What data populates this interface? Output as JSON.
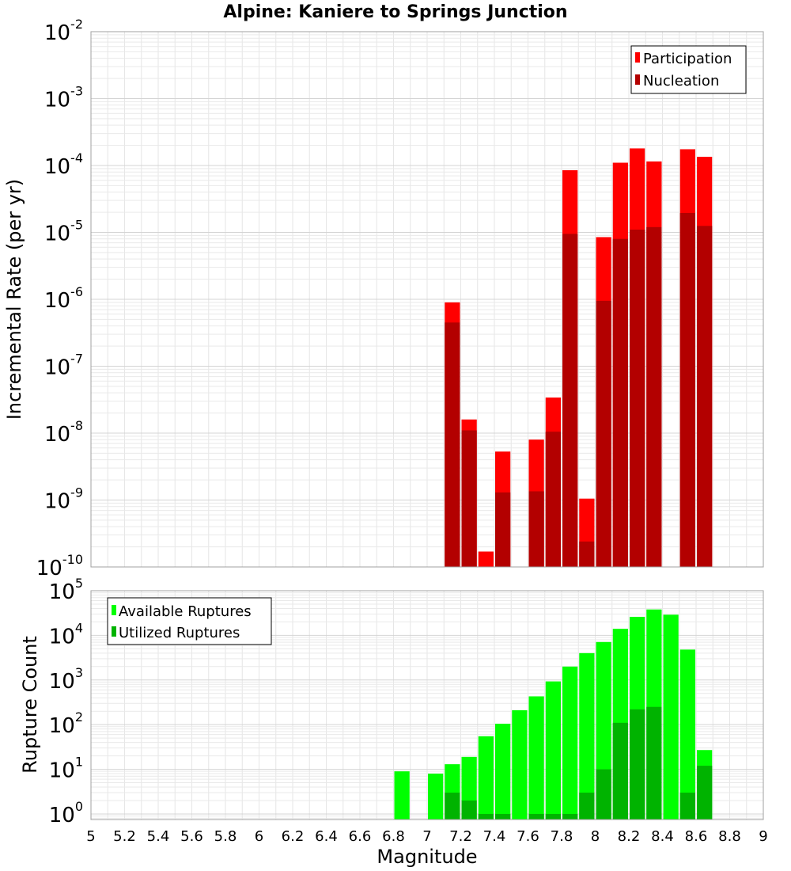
{
  "chart_data": [
    {
      "type": "bar",
      "title": "Alpine: Kaniere to Springs Junction",
      "ylabel": "Incremental Rate (per yr)",
      "xlabel": "",
      "xlim": [
        5,
        9
      ],
      "ylim": [
        1e-10,
        0.01
      ],
      "yscale": "log",
      "grid": true,
      "legend_position": "top-right",
      "bin_width": 0.1,
      "ytick_labels": [
        {
          "base": "10",
          "exp": "-10"
        },
        {
          "base": "10",
          "exp": "-9"
        },
        {
          "base": "10",
          "exp": "-8"
        },
        {
          "base": "10",
          "exp": "-7"
        },
        {
          "base": "10",
          "exp": "-6"
        },
        {
          "base": "10",
          "exp": "-5"
        },
        {
          "base": "10",
          "exp": "-4"
        },
        {
          "base": "10",
          "exp": "-3"
        },
        {
          "base": "10",
          "exp": "-2"
        }
      ],
      "series": [
        {
          "name": "Participation",
          "color": "#ff0000",
          "x": [
            7.15,
            7.25,
            7.35,
            7.45,
            7.65,
            7.75,
            7.85,
            7.95,
            8.05,
            8.15,
            8.25,
            8.35,
            8.55,
            8.65
          ],
          "values": [
            9e-07,
            1.6e-08,
            1.7e-10,
            5.3e-09,
            8e-09,
            3.4e-08,
            8.5e-05,
            1.05e-09,
            8.5e-06,
            0.00011,
            0.00018,
            0.000115,
            0.000175,
            0.000135
          ]
        },
        {
          "name": "Nucleation",
          "color": "#b30000",
          "x": [
            7.15,
            7.25,
            7.45,
            7.65,
            7.75,
            7.85,
            7.95,
            8.05,
            8.15,
            8.25,
            8.35,
            8.55,
            8.65
          ],
          "values": [
            4.5e-07,
            1.1e-08,
            1.3e-09,
            1.35e-09,
            1.05e-08,
            9.5e-06,
            2.4e-10,
            9.5e-07,
            8e-06,
            1.1e-05,
            1.2e-05,
            1.95e-05,
            1.25e-05
          ]
        }
      ]
    },
    {
      "type": "bar",
      "title": "",
      "ylabel": "Rupture Count",
      "xlabel": "Magnitude",
      "xlim": [
        5,
        9
      ],
      "ylim": [
        0.75,
        100000
      ],
      "yscale": "log",
      "grid": true,
      "legend_position": "top-left",
      "bin_width": 0.1,
      "xtick_labels": [
        "5",
        "5.2",
        "5.4",
        "5.6",
        "5.8",
        "6",
        "6.2",
        "6.4",
        "6.6",
        "6.8",
        "7",
        "7.2",
        "7.4",
        "7.6",
        "7.8",
        "8",
        "8.2",
        "8.4",
        "8.6",
        "8.8",
        "9"
      ],
      "ytick_labels": [
        {
          "base": "10",
          "exp": "0"
        },
        {
          "base": "10",
          "exp": "1"
        },
        {
          "base": "10",
          "exp": "2"
        },
        {
          "base": "10",
          "exp": "3"
        },
        {
          "base": "10",
          "exp": "4"
        },
        {
          "base": "10",
          "exp": "5"
        }
      ],
      "series": [
        {
          "name": "Available Ruptures",
          "color": "#00ff00",
          "x": [
            6.85,
            7.05,
            7.15,
            7.25,
            7.35,
            7.45,
            7.55,
            7.65,
            7.75,
            7.85,
            7.95,
            8.05,
            8.15,
            8.25,
            8.35,
            8.45,
            8.55,
            8.65
          ],
          "values": [
            9,
            8,
            13,
            19,
            55,
            105,
            210,
            430,
            930,
            2000,
            4000,
            7100,
            14000,
            26000,
            38000,
            29000,
            4800,
            27
          ]
        },
        {
          "name": "Utilized Ruptures",
          "color": "#00b300",
          "x": [
            7.15,
            7.25,
            7.35,
            7.45,
            7.65,
            7.75,
            7.85,
            7.95,
            8.05,
            8.15,
            8.25,
            8.35,
            8.55,
            8.65
          ],
          "values": [
            3,
            2,
            1,
            1,
            1,
            1,
            1,
            3,
            10,
            110,
            220,
            250,
            3,
            12
          ]
        }
      ]
    }
  ]
}
